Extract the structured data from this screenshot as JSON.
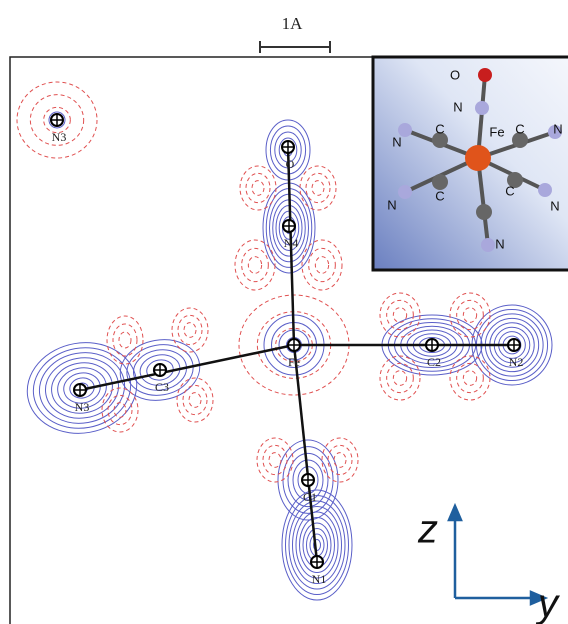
{
  "scale_bar": {
    "label": "1A"
  },
  "atoms": [
    {
      "label": "N3"
    },
    {
      "label": "O"
    },
    {
      "label": "N4"
    },
    {
      "label": "Fe"
    },
    {
      "label": "C2"
    },
    {
      "label": "N2"
    },
    {
      "label": "N3"
    },
    {
      "label": "C3"
    },
    {
      "label": "C1"
    },
    {
      "label": "N1"
    }
  ],
  "inset": {
    "labels": [
      "O",
      "N",
      "Fe",
      "C",
      "C",
      "N",
      "N",
      "C",
      "C",
      "N",
      "N",
      "N"
    ]
  },
  "axes": {
    "z": "z",
    "y": "y"
  }
}
